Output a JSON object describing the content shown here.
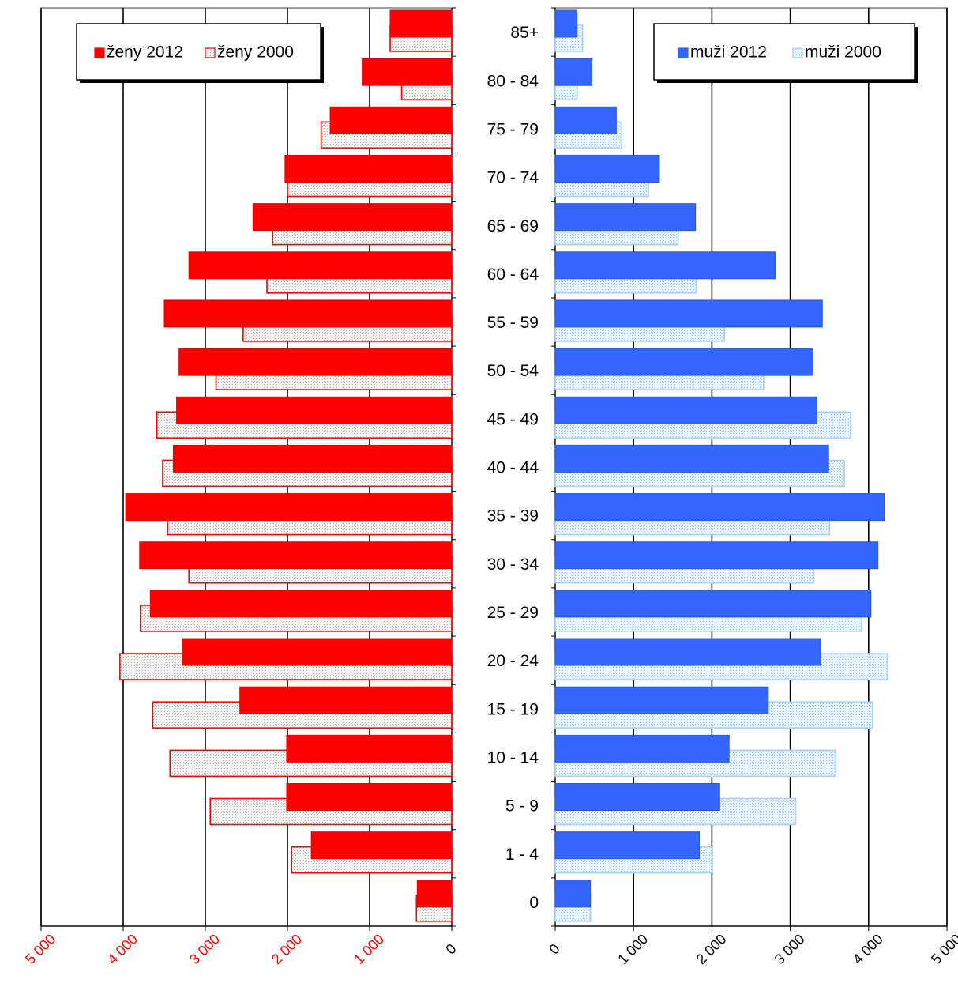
{
  "chart_data": {
    "type": "bar",
    "subtype": "population-pyramid",
    "categories": [
      "85+",
      "80 - 84",
      "75 - 79",
      "70 - 74",
      "65 - 69",
      "60 - 64",
      "55 - 59",
      "50 - 54",
      "45 - 49",
      "40 - 44",
      "35 - 39",
      "30 - 34",
      "25 - 29",
      "20 - 24",
      "15 - 19",
      "10 - 14",
      "5 - 9",
      "1 - 4",
      "0"
    ],
    "left_panel": {
      "xlim": [
        0,
        5000
      ],
      "direction": "reversed",
      "ticks": [
        0,
        1000,
        2000,
        3000,
        4000,
        5000
      ],
      "tick_labels": [
        "0",
        "1 000",
        "2 000",
        "3 000",
        "4 000",
        "5 000"
      ],
      "tick_label_colors": [
        "#000000",
        "#ff0000",
        "#ff0000",
        "#ff0000",
        "#ff0000",
        "#ff0000"
      ],
      "grid": true,
      "legend_position": "top-left",
      "series": [
        {
          "name": "ženy 2012",
          "color": "#ff0000",
          "fill": "solid",
          "values": [
            750,
            1090,
            1480,
            2030,
            2420,
            3200,
            3500,
            3320,
            3350,
            3390,
            3970,
            3800,
            3670,
            3280,
            2580,
            2010,
            2010,
            1710,
            420
          ]
        },
        {
          "name": "ženy 2000",
          "color": "#ff0000",
          "fill": "dotted-light",
          "values": [
            750,
            610,
            1590,
            2000,
            2180,
            2250,
            2540,
            2870,
            3590,
            3520,
            3460,
            3200,
            3790,
            4040,
            3640,
            3430,
            2940,
            1950,
            430
          ]
        }
      ]
    },
    "right_panel": {
      "xlim": [
        0,
        5000
      ],
      "ticks": [
        0,
        1000,
        2000,
        3000,
        4000,
        5000
      ],
      "tick_labels": [
        "0",
        "1 000",
        "2 000",
        "3 000",
        "4 000",
        "5 000"
      ],
      "grid": true,
      "legend_position": "top-right",
      "series": [
        {
          "name": "muži 2012",
          "color": "#3366ff",
          "fill": "solid",
          "values": [
            280,
            470,
            780,
            1330,
            1790,
            2810,
            3410,
            3290,
            3340,
            3490,
            4200,
            4120,
            4030,
            3390,
            2720,
            2220,
            2100,
            1840,
            450
          ]
        },
        {
          "name": "muži 2000",
          "color": "#a8d2f5",
          "fill": "dotted-light",
          "values": [
            350,
            280,
            850,
            1190,
            1570,
            1800,
            2160,
            2660,
            3770,
            3690,
            3500,
            3300,
            3910,
            4240,
            4050,
            3580,
            3070,
            2000,
            450
          ]
        }
      ]
    }
  }
}
